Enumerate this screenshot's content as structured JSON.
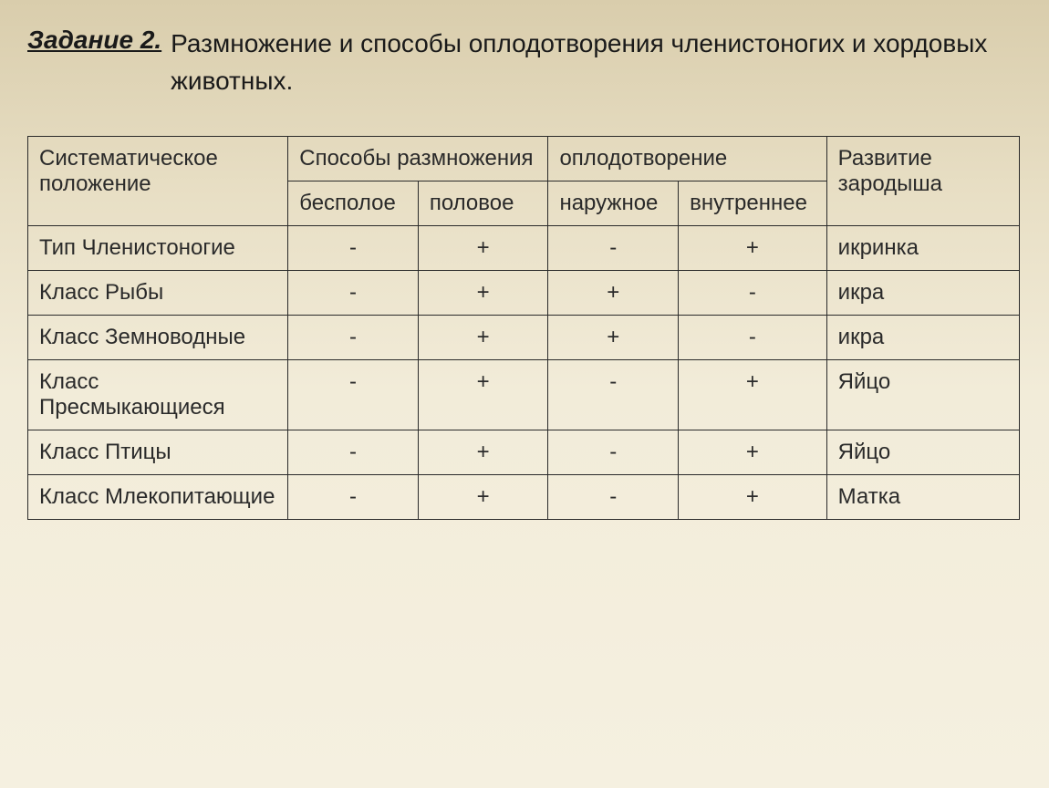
{
  "title": {
    "task_label": "Задание 2.",
    "text": "Размножение и способы оплодотворения членистоногих и хордовых животных."
  },
  "table": {
    "headers": {
      "col1": "Систематическое положение",
      "col2_group": "Способы размножения",
      "col2a": "бесполое",
      "col2b": "половое",
      "col3_group": "оплодотворение",
      "col3a": "наружное",
      "col3b": "внутреннее",
      "col4": "Развитие зародыша"
    },
    "rows": [
      {
        "name": "Тип Членистоногие",
        "asexual": "-",
        "sexual": "+",
        "external": "-",
        "internal": "+",
        "dev": "икринка"
      },
      {
        "name": "Класс Рыбы",
        "asexual": "-",
        "sexual": "+",
        "external": "+",
        "internal": "-",
        "dev": "икра"
      },
      {
        "name": "Класс Земноводные",
        "asexual": "-",
        "sexual": "+",
        "external": "+",
        "internal": "-",
        "dev": "икра"
      },
      {
        "name": "Класс Пресмыкающиеся",
        "asexual": "-",
        "sexual": "+",
        "external": "-",
        "internal": "+",
        "dev": "Яйцо"
      },
      {
        "name": "Класс Птицы",
        "asexual": "-",
        "sexual": "+",
        "external": "-",
        "internal": "+",
        "dev": "Яйцо"
      },
      {
        "name": "Класс Млекопитающие",
        "asexual": "-",
        "sexual": "+",
        "external": "-",
        "internal": "+",
        "dev": "Матка"
      }
    ]
  },
  "style": {
    "background_gradient": [
      "#d9cdac",
      "#e8dfc5",
      "#f2ecd9",
      "#f5f0e0"
    ],
    "text_color": "#2a2a2a",
    "border_color": "#2a2a2a",
    "title_fontsize": 28,
    "cell_fontsize": 24
  }
}
